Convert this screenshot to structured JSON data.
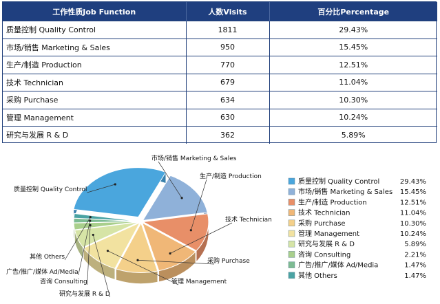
{
  "table": {
    "headers": [
      "工作性质Job Function",
      "人数Visits",
      "百分比Percentage"
    ],
    "rows": [
      [
        "质量控制 Quality Control",
        "1811",
        "29.43%"
      ],
      [
        "市场/销售 Marketing & Sales",
        "950",
        "15.45%"
      ],
      [
        "生产/制造 Production",
        "770",
        "12.51%"
      ],
      [
        "技术 Technician",
        "679",
        "11.04%"
      ],
      [
        "采购 Purchase",
        "634",
        "10.30%"
      ],
      [
        "管理 Management",
        "630",
        "10.24%"
      ],
      [
        "研究与发展 R & D",
        "362",
        "5.89%"
      ]
    ]
  },
  "chart_data": {
    "type": "pie",
    "style": "3d-exploded",
    "legend_position": "right",
    "slices": [
      {
        "label": "质量控制 Quality Control",
        "value": 29.43,
        "display": "29.43%",
        "color": "#4aa6dd"
      },
      {
        "label": "市场/销售 Marketing & Sales",
        "value": 15.45,
        "display": "15.45%",
        "color": "#8fb1d9"
      },
      {
        "label": "生产/制造 Production",
        "value": 12.51,
        "display": "12.51%",
        "color": "#e88f68"
      },
      {
        "label": "技术 Technician",
        "value": 11.04,
        "display": "11.04%",
        "color": "#f0b777"
      },
      {
        "label": "采购 Purchase",
        "value": 10.3,
        "display": "10.30%",
        "color": "#f4d08a"
      },
      {
        "label": "管理 Management",
        "value": 10.24,
        "display": "10.24%",
        "color": "#f2e2a0"
      },
      {
        "label": "研究与发展 R & D",
        "value": 5.89,
        "display": "5.89%",
        "color": "#d6e4a6"
      },
      {
        "label": "咨询 Consulting",
        "value": 2.21,
        "display": "2.21%",
        "color": "#a9cf8c"
      },
      {
        "label": "广告/推广/媒体 Ad/Media",
        "value": 1.47,
        "display": "1.47%",
        "color": "#7dbb92"
      },
      {
        "label": "其他 Others",
        "value": 1.47,
        "display": "1.47%",
        "color": "#4aa3a3"
      }
    ]
  }
}
